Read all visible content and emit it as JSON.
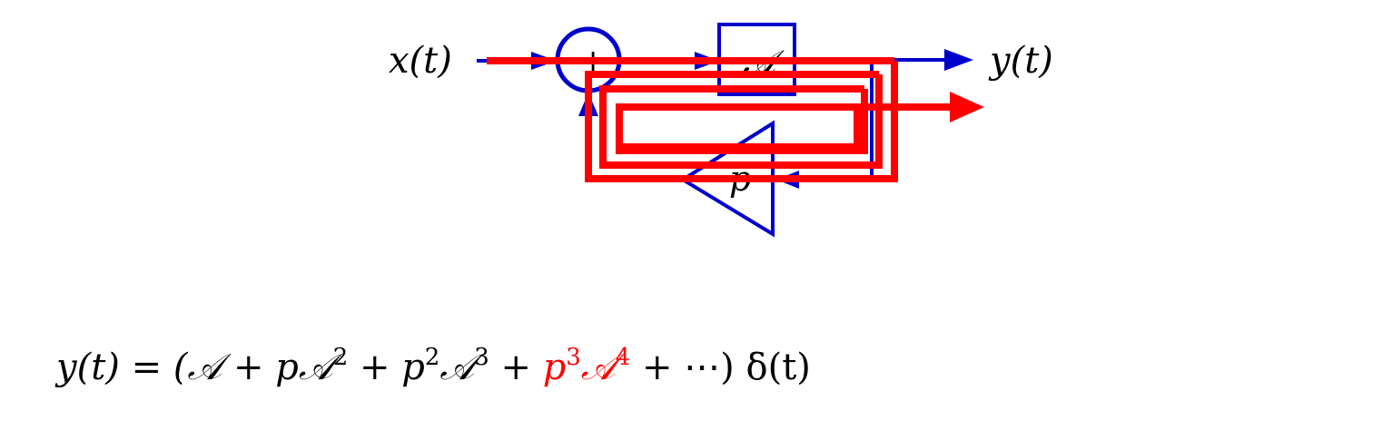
{
  "diagram": {
    "input_label": "x(t)",
    "output_label": "y(t)",
    "summer_sign": "+",
    "forward_block_label": "𝒜",
    "feedback_block_label": "p",
    "colors": {
      "system": "#0000cc",
      "signal_path": "#ff0000",
      "text": "#000000"
    }
  },
  "equation": {
    "lhs": "y(t) = (",
    "term1": "𝒜",
    "plus1": " + ",
    "term2_coef": "p",
    "term2_op": "𝒜",
    "term2_exp": "2",
    "plus2": " + ",
    "term3_coef": "p",
    "term3_coef_exp": "2",
    "term3_op": "𝒜",
    "term3_exp": "3",
    "plus3": " + ",
    "term4_coef": "p",
    "term4_coef_exp": "3",
    "term4_op": "𝒜",
    "term4_exp": "4",
    "tail": " + ⋯) δ(t)",
    "highlight_color": "#ff0000"
  }
}
